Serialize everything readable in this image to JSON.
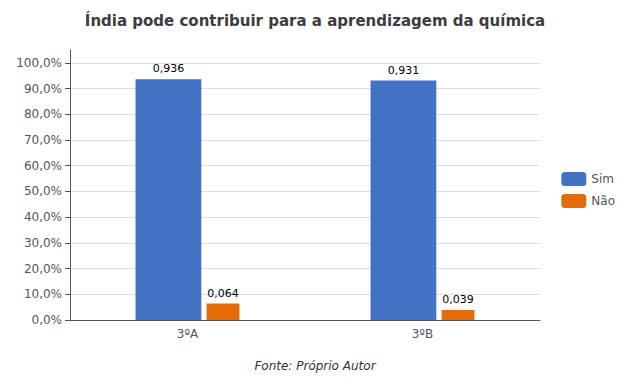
{
  "chart_data": {
    "type": "bar",
    "title": "Índia pode contribuir para a aprendizagem da química",
    "categories": [
      "3ºA",
      "3ºB"
    ],
    "series": [
      {
        "name": "Sim",
        "color": "#4472C4",
        "values": [
          0.936,
          0.931
        ],
        "value_labels": [
          "0,936",
          "0,931"
        ]
      },
      {
        "name": "Não",
        "color": "#E36C09",
        "values": [
          0.064,
          0.039
        ],
        "value_labels": [
          "0,064",
          "0,039"
        ]
      }
    ],
    "ylim": [
      0,
      1.05
    ],
    "yticks": [
      {
        "value": 0.0,
        "label": "0,0%"
      },
      {
        "value": 0.1,
        "label": "10,0%"
      },
      {
        "value": 0.2,
        "label": "20,0%"
      },
      {
        "value": 0.3,
        "label": "30,0%"
      },
      {
        "value": 0.4,
        "label": "40,0%"
      },
      {
        "value": 0.5,
        "label": "50,0%"
      },
      {
        "value": 0.6,
        "label": "60,0%"
      },
      {
        "value": 0.7,
        "label": "70,0%"
      },
      {
        "value": 0.8,
        "label": "80,0%"
      },
      {
        "value": 0.9,
        "label": "90,0%"
      },
      {
        "value": 1.0,
        "label": "100,0%"
      }
    ],
    "grid": true,
    "legend": "right",
    "data_labels": true,
    "annotations": [
      "Fonte: Próprio Autor"
    ]
  }
}
